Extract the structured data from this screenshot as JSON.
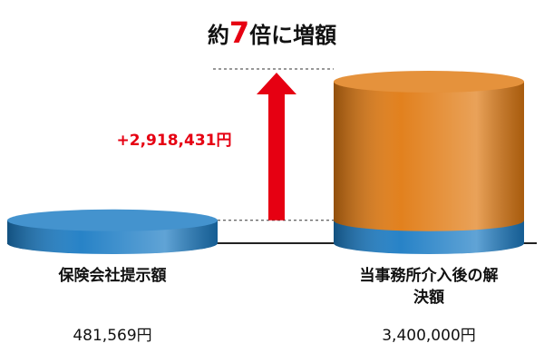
{
  "chart_data": {
    "type": "stacked-cylinder",
    "title_parts": [
      "約",
      "7",
      "倍に増額"
    ],
    "categories": [
      "保険会社提示額",
      "当事務所介入後の解決額"
    ],
    "series": [
      {
        "color": "#1c7cc4",
        "values": [
          481569,
          481569
        ]
      },
      {
        "color": "#e07a12",
        "values": [
          null,
          2918431
        ]
      }
    ],
    "totals": [
      481569,
      3400000
    ],
    "total_labels": [
      "481,569円",
      "3,400,000円"
    ],
    "annotation": {
      "value": 2918431,
      "label": "+2,918,431円",
      "color": "#e60012"
    },
    "ylim": [
      0,
      3400000
    ]
  }
}
